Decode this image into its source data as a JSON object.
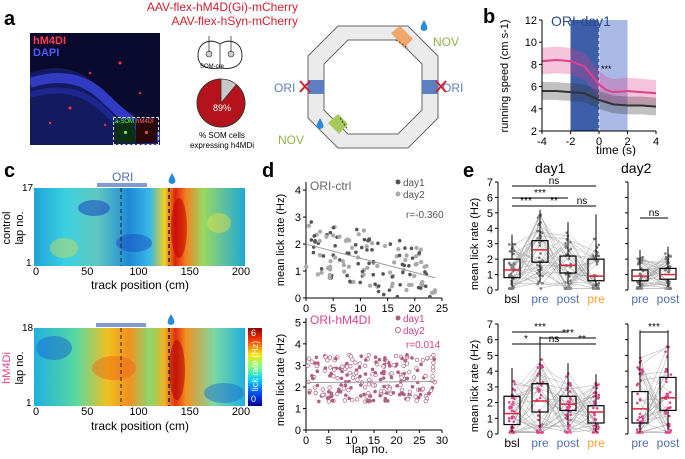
{
  "panel_a": {
    "letter": "a",
    "title_line1": "AAV-flex-hM4D(Gi)-mCherry",
    "title_line2": "AAV-flex-hSyn-mCherry",
    "legend_hm4di": "hM4DI",
    "legend_dapi": "DAPI",
    "inset_label1": "a-SOM",
    "inset_label2": "hM4DI",
    "brain_label": "SOM-cre",
    "pie_percent_label": "89%",
    "pie_fraction": 0.89,
    "pie_caption_line1": "% SOM cells",
    "pie_caption_line2": "expressing h4MDi",
    "track_label_nov_top": "NOV",
    "track_label_nov_bottom": "NOV",
    "track_label_ori_left": "ORI",
    "track_label_ori_right": "ORI"
  },
  "panel_b": {
    "letter": "b",
    "title": "ORI-day1",
    "ylabel": "running speed (cm s-1)",
    "xlabel": "time (s)",
    "significance": "***",
    "chart_data": {
      "type": "line",
      "x_ticks": [
        "-4",
        "-2",
        "0",
        "2",
        "4"
      ],
      "y_ticks": [
        "2",
        "4",
        "6",
        "8",
        "10",
        "12"
      ],
      "xlim": [
        -4,
        4
      ],
      "ylim": [
        2,
        12
      ],
      "series": [
        {
          "name": "hM4DI",
          "color": "#e0408a",
          "x": [
            -4,
            -3,
            -2,
            -1,
            -0.5,
            0,
            0.5,
            1,
            2,
            3,
            4
          ],
          "y": [
            8.3,
            8.4,
            8.3,
            7.8,
            7.0,
            6.2,
            5.7,
            5.5,
            5.6,
            5.5,
            5.4
          ]
        },
        {
          "name": "control",
          "color": "#333333",
          "x": [
            -4,
            -3,
            -2,
            -1,
            -0.5,
            0,
            0.5,
            1,
            2,
            3,
            4
          ],
          "y": [
            5.6,
            5.6,
            5.5,
            5.4,
            5.1,
            4.8,
            4.6,
            4.4,
            4.3,
            4.3,
            4.2
          ]
        }
      ]
    }
  },
  "panel_c": {
    "letter": "c",
    "ori_label": "ORI",
    "top_ylabel_group": "control",
    "top_ylabel": "lap no.",
    "top_ytick_top": "17",
    "top_ytick_bottom": "1",
    "bottom_ylabel_group": "hM4Di",
    "bottom_ylabel": "lap no.",
    "bottom_ytick_top": "18",
    "bottom_ytick_bottom": "1",
    "xlabel_top": "track position (cm)",
    "xlabel_bottom": "track position (cm)",
    "x_ticks": [
      "0",
      "50",
      "100",
      "150",
      "200"
    ],
    "colorbar_label": "lick rate (Hz)",
    "colorbar_min": "0",
    "colorbar_max": "6"
  },
  "panel_d": {
    "letter": "d",
    "top_title": "ORI-ctrl",
    "top_legend_day1": "day1",
    "top_legend_day2": "day2",
    "top_r": "r=-0.360",
    "bottom_title": "ORI-hM4DI",
    "bottom_legend_day1": "day1",
    "bottom_legend_day2": "day2",
    "bottom_r": "r=0.014",
    "ylabel_top": "mean lick rate (Hz)",
    "ylabel_bottom": "mean lick rate (Hz)",
    "xlabel": "lap no.",
    "top_y_ticks": [
      "0",
      "1",
      "2",
      "3",
      "4"
    ],
    "bottom_y_ticks": [
      "0",
      "1",
      "2",
      "3",
      "4",
      "5"
    ],
    "top_x_ticks": [
      "0",
      "5",
      "10",
      "15",
      "20",
      "25"
    ],
    "bottom_x_ticks": [
      "0",
      "5",
      "10",
      "15",
      "20",
      "25",
      "30"
    ]
  },
  "panel_e": {
    "letter": "e",
    "day1_title": "day1",
    "day2_title": "day2",
    "ylabel_top": "mean lick rate (Hz)",
    "ylabel_bottom": "mean lick rate (Hz)",
    "top_y_ticks": [
      "0",
      "1",
      "2",
      "3",
      "4",
      "5",
      "6",
      "7"
    ],
    "bottom_y_ticks": [
      "0",
      "1",
      "2",
      "3",
      "4",
      "5",
      "6",
      "7"
    ],
    "day1_categories": [
      "bsl",
      "pre",
      "post",
      "pre"
    ],
    "day2_categories": [
      "pre",
      "post"
    ],
    "top_sig": [
      "ns",
      "***",
      "***",
      "**",
      "ns",
      "ns"
    ],
    "bottom_sig": [
      "***",
      "*",
      "ns",
      "***",
      "**",
      "***"
    ]
  }
}
